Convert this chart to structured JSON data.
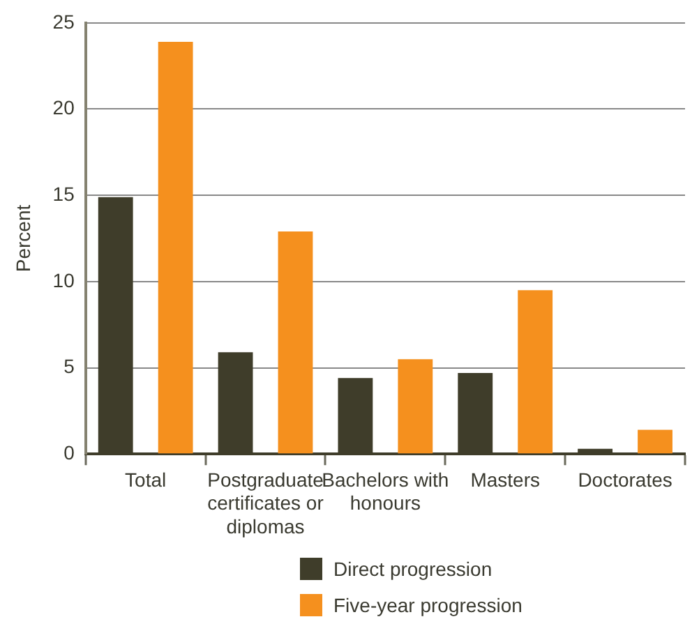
{
  "chart_data": {
    "type": "bar",
    "ylabel": "Percent",
    "categories": [
      "Total",
      "Postgraduate certificates or diplomas",
      "Bachelors with honours",
      "Masters",
      "Doctorates"
    ],
    "series": [
      {
        "name": "Direct progression",
        "color": "#3f3d2a",
        "values": [
          14.9,
          5.9,
          4.4,
          4.7,
          0.3
        ]
      },
      {
        "name": "Five-year progression",
        "color": "#f5901e",
        "values": [
          23.9,
          12.9,
          5.5,
          9.5,
          1.4
        ]
      }
    ],
    "ylim": [
      0,
      25
    ],
    "yticks": [
      0,
      5,
      10,
      15,
      20,
      25
    ],
    "grid": "y",
    "legend": "bottom"
  }
}
